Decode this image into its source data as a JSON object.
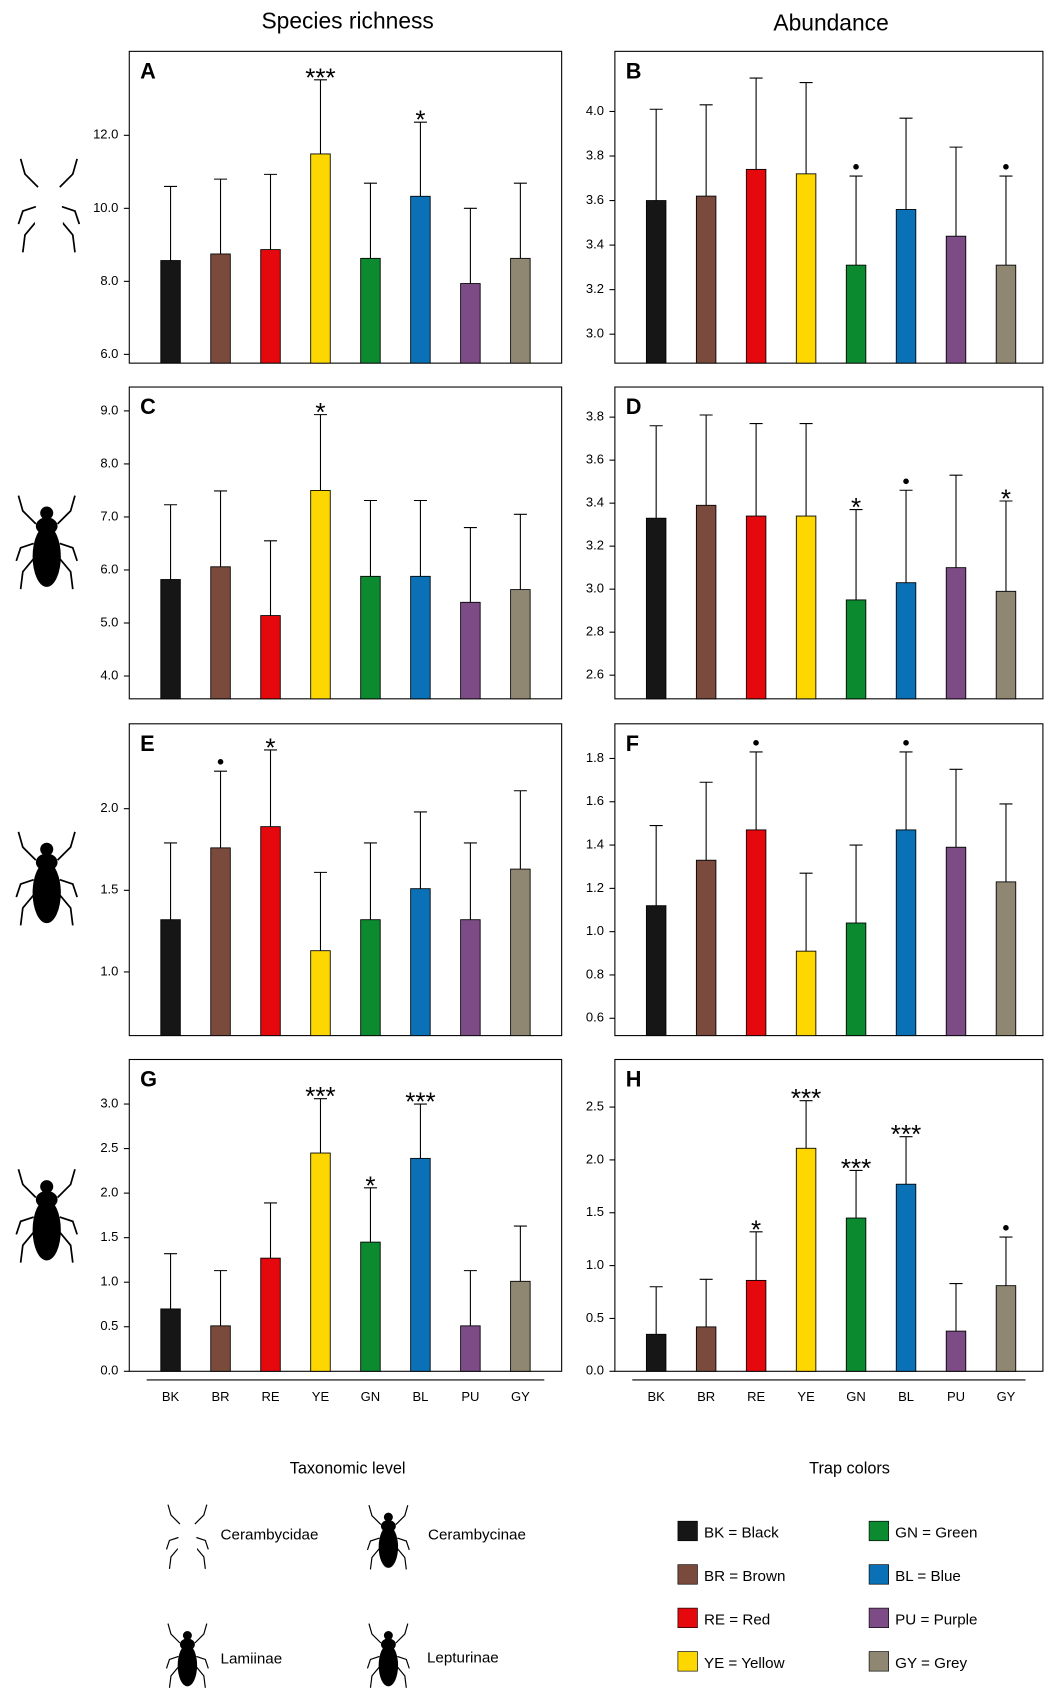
{
  "column_titles": [
    "Species richness",
    "Abundance"
  ],
  "chart_data": [
    {
      "type": "bar",
      "panel": "A",
      "values": [
        8.57,
        8.75,
        8.87,
        11.49,
        8.63,
        10.33,
        7.94,
        8.63
      ],
      "errors": [
        2.03,
        2.05,
        2.06,
        2.03,
        2.06,
        2.03,
        2.06,
        2.06
      ],
      "annotations": [
        null,
        null,
        null,
        "***",
        null,
        "*",
        null,
        null
      ],
      "colors": [
        "#161616",
        "#7a4b3c",
        "#e5080c",
        "#ffd700",
        "#0b8a30",
        "#0a71b6",
        "#7d4c86",
        "#8f8772"
      ],
      "ylim": [
        5.76,
        14.3
      ],
      "yticks": [
        {
          "value": 6,
          "label": "6.0"
        },
        {
          "value": 8,
          "label": "8.0"
        },
        {
          "value": 10,
          "label": "10.0"
        },
        {
          "value": 12,
          "label": "12.0"
        }
      ]
    },
    {
      "type": "bar",
      "panel": "B",
      "values": [
        3.6,
        3.62,
        3.74,
        3.72,
        3.31,
        3.56,
        3.44,
        3.31
      ],
      "errors": [
        0.41,
        0.41,
        0.41,
        0.41,
        0.4,
        0.41,
        0.4,
        0.4
      ],
      "annotations": [
        null,
        null,
        null,
        null,
        "●",
        null,
        null,
        "●"
      ],
      "colors": [
        "#161616",
        "#7a4b3c",
        "#e5080c",
        "#ffd700",
        "#0b8a30",
        "#0a71b6",
        "#7d4c86",
        "#8f8772"
      ],
      "ylim": [
        2.87,
        4.27
      ],
      "yticks": [
        {
          "value": 3,
          "label": "3.0"
        },
        3.2,
        3.4,
        3.6,
        3.8,
        {
          "value": 4,
          "label": "4.0"
        }
      ]
    },
    {
      "type": "bar",
      "panel": "C",
      "values": [
        5.82,
        6.06,
        5.14,
        7.5,
        5.88,
        5.88,
        5.39,
        5.63
      ],
      "errors": [
        1.41,
        1.43,
        1.41,
        1.43,
        1.43,
        1.43,
        1.41,
        1.42
      ],
      "annotations": [
        null,
        null,
        null,
        "*",
        null,
        null,
        null,
        null
      ],
      "colors": [
        "#161616",
        "#7a4b3c",
        "#e5080c",
        "#ffd700",
        "#0b8a30",
        "#0a71b6",
        "#7d4c86",
        "#8f8772"
      ],
      "ylim": [
        3.57,
        9.45
      ],
      "yticks": [
        {
          "value": 4,
          "label": "4.0"
        },
        {
          "value": 5,
          "label": "5.0"
        },
        {
          "value": 6,
          "label": "6.0"
        },
        {
          "value": 7,
          "label": "7.0"
        },
        {
          "value": 8,
          "label": "8.0"
        },
        {
          "value": 9,
          "label": "9.0"
        }
      ]
    },
    {
      "type": "bar",
      "panel": "D",
      "values": [
        3.33,
        3.39,
        3.34,
        3.34,
        2.95,
        3.03,
        3.1,
        2.99
      ],
      "errors": [
        0.43,
        0.42,
        0.43,
        0.43,
        0.42,
        0.43,
        0.43,
        0.42
      ],
      "annotations": [
        null,
        null,
        null,
        null,
        "*",
        "●",
        null,
        "*"
      ],
      "colors": [
        "#161616",
        "#7a4b3c",
        "#e5080c",
        "#ffd700",
        "#0b8a30",
        "#0a71b6",
        "#7d4c86",
        "#8f8772"
      ],
      "ylim": [
        2.49,
        3.94
      ],
      "yticks": [
        2.6,
        2.8,
        {
          "value": 3,
          "label": "3.0"
        },
        3.2,
        3.4,
        3.6,
        3.8
      ]
    },
    {
      "type": "bar",
      "panel": "E",
      "values": [
        1.32,
        1.76,
        1.89,
        1.13,
        1.32,
        1.51,
        1.32,
        1.63
      ],
      "errors": [
        0.47,
        0.47,
        0.47,
        0.48,
        0.47,
        0.47,
        0.47,
        0.48
      ],
      "annotations": [
        null,
        "●",
        "*",
        null,
        null,
        null,
        null,
        null
      ],
      "colors": [
        "#161616",
        "#7a4b3c",
        "#e5080c",
        "#ffd700",
        "#0b8a30",
        "#0a71b6",
        "#7d4c86",
        "#8f8772"
      ],
      "ylim": [
        0.61,
        2.52
      ],
      "yticks": [
        {
          "value": 1,
          "label": "1.0"
        },
        1.5,
        {
          "value": 2,
          "label": "2.0"
        }
      ]
    },
    {
      "type": "bar",
      "panel": "F",
      "values": [
        1.12,
        1.33,
        1.47,
        0.91,
        1.04,
        1.47,
        1.39,
        1.23
      ],
      "errors": [
        0.37,
        0.36,
        0.36,
        0.36,
        0.36,
        0.36,
        0.36,
        0.36
      ],
      "annotations": [
        null,
        null,
        "●",
        null,
        null,
        "●",
        null,
        null
      ],
      "colors": [
        "#161616",
        "#7a4b3c",
        "#e5080c",
        "#ffd700",
        "#0b8a30",
        "#0a71b6",
        "#7d4c86",
        "#8f8772"
      ],
      "ylim": [
        0.52,
        1.96
      ],
      "yticks": [
        0.6,
        0.8,
        {
          "value": 1,
          "label": "1.0"
        },
        1.2,
        1.4,
        1.6,
        1.8
      ]
    },
    {
      "type": "bar",
      "panel": "G",
      "categories": [
        "BK",
        "BR",
        "RE",
        "YE",
        "GN",
        "BL",
        "PU",
        "GY"
      ],
      "values": [
        0.7,
        0.51,
        1.27,
        2.45,
        1.45,
        2.39,
        0.51,
        1.01
      ],
      "errors": [
        0.62,
        0.62,
        0.62,
        0.61,
        0.61,
        0.61,
        0.62,
        0.62
      ],
      "annotations": [
        null,
        null,
        null,
        "***",
        "*",
        "***",
        null,
        null
      ],
      "colors": [
        "#161616",
        "#7a4b3c",
        "#e5080c",
        "#ffd700",
        "#0b8a30",
        "#0a71b6",
        "#7d4c86",
        "#8f8772"
      ],
      "ylim": [
        0,
        3.5
      ],
      "yticks": [
        {
          "value": 0,
          "label": "0.0"
        },
        0.5,
        {
          "value": 1,
          "label": "1.0"
        },
        1.5,
        {
          "value": 2,
          "label": "2.0"
        },
        2.5,
        {
          "value": 3,
          "label": "3.0"
        }
      ]
    },
    {
      "type": "bar",
      "panel": "H",
      "categories": [
        "BK",
        "BR",
        "RE",
        "YE",
        "GN",
        "BL",
        "PU",
        "GY"
      ],
      "values": [
        0.35,
        0.42,
        0.86,
        2.11,
        1.45,
        1.77,
        0.38,
        0.81
      ],
      "errors": [
        0.45,
        0.45,
        0.46,
        0.45,
        0.45,
        0.45,
        0.45,
        0.46
      ],
      "annotations": [
        null,
        null,
        "*",
        "***",
        "***",
        "***",
        null,
        "●"
      ],
      "colors": [
        "#161616",
        "#7a4b3c",
        "#e5080c",
        "#ffd700",
        "#0b8a30",
        "#0a71b6",
        "#7d4c86",
        "#8f8772"
      ],
      "ylim": [
        0,
        2.95
      ],
      "yticks": [
        {
          "value": 0,
          "label": "0.0"
        },
        0.5,
        {
          "value": 1,
          "label": "1.0"
        },
        1.5,
        {
          "value": 2,
          "label": "2.0"
        },
        2.5
      ]
    }
  ],
  "taxonomic_legend": {
    "title": "Taxonomic level",
    "items": [
      "Cerambycidae",
      "Cerambycinae",
      "Lamiinae",
      "Lepturinae"
    ]
  },
  "color_legend": {
    "title": "Trap colors",
    "items": [
      {
        "label": "BK = Black",
        "color": "#161616"
      },
      {
        "label": "BR = Brown",
        "color": "#7a4b3c"
      },
      {
        "label": "RE = Red",
        "color": "#e5080c"
      },
      {
        "label": "YE = Yellow",
        "color": "#ffd700"
      },
      {
        "label": "GN = Green",
        "color": "#0b8a30"
      },
      {
        "label": "BL = Blue",
        "color": "#0a71b6"
      },
      {
        "label": "PU = Purple",
        "color": "#7d4c86"
      },
      {
        "label": "GY = Grey",
        "color": "#8f8772"
      }
    ]
  }
}
